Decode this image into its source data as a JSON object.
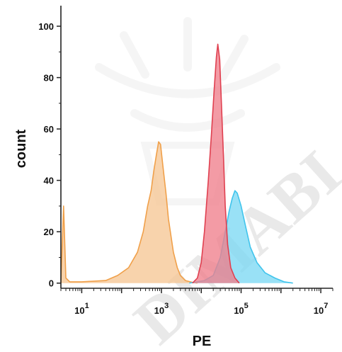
{
  "watermark": {
    "text": "DIMABI"
  },
  "chart_data": {
    "type": "area",
    "title": "",
    "xlabel": "PE",
    "ylabel": "count",
    "xscale": "log",
    "xlim": [
      3,
      20000000
    ],
    "ylim": [
      -2,
      108
    ],
    "x_ticks": [
      {
        "value": 10,
        "base": "10",
        "exp": "1"
      },
      {
        "value": 1000,
        "base": "10",
        "exp": "3"
      },
      {
        "value": 100000,
        "base": "10",
        "exp": "5"
      },
      {
        "value": 10000000,
        "base": "10",
        "exp": "7"
      }
    ],
    "y_ticks": [
      {
        "value": 0,
        "label": "0"
      },
      {
        "value": 20,
        "label": "20"
      },
      {
        "value": 40,
        "label": "40"
      },
      {
        "value": 60,
        "label": "60"
      },
      {
        "value": 80,
        "label": "80"
      },
      {
        "value": 100,
        "label": "100"
      }
    ],
    "grid": false,
    "legend": "none",
    "series": [
      {
        "color": "#f0a04a",
        "fill": "#f6c795",
        "points": [
          [
            3,
            0
          ],
          [
            3.5,
            30
          ],
          [
            4,
            2
          ],
          [
            5,
            0.5
          ],
          [
            10,
            0.5
          ],
          [
            40,
            1
          ],
          [
            80,
            3
          ],
          [
            150,
            6
          ],
          [
            250,
            12
          ],
          [
            350,
            20
          ],
          [
            450,
            30
          ],
          [
            550,
            36
          ],
          [
            650,
            44
          ],
          [
            750,
            50
          ],
          [
            850,
            55
          ],
          [
            950,
            54
          ],
          [
            1100,
            45
          ],
          [
            1300,
            35
          ],
          [
            1500,
            25
          ],
          [
            2000,
            12
          ],
          [
            2500,
            6
          ],
          [
            3000,
            3
          ],
          [
            4000,
            1
          ],
          [
            6000,
            0.3
          ],
          [
            8000,
            0
          ]
        ]
      },
      {
        "color": "#40c4ec",
        "fill": "#7cd8f4",
        "points": [
          [
            5000,
            0
          ],
          [
            8000,
            0.5
          ],
          [
            12000,
            1
          ],
          [
            20000,
            3
          ],
          [
            30000,
            10
          ],
          [
            40000,
            20
          ],
          [
            50000,
            28
          ],
          [
            60000,
            33
          ],
          [
            70000,
            36
          ],
          [
            80000,
            35
          ],
          [
            100000,
            30
          ],
          [
            130000,
            22
          ],
          [
            170000,
            14
          ],
          [
            250000,
            8
          ],
          [
            400000,
            4
          ],
          [
            700000,
            2
          ],
          [
            1200000,
            0.5
          ],
          [
            2000000,
            0
          ]
        ]
      },
      {
        "color": "#e04050",
        "fill": "#ef7f8c",
        "points": [
          [
            6000,
            0
          ],
          [
            8000,
            2
          ],
          [
            10000,
            8
          ],
          [
            12000,
            20
          ],
          [
            15000,
            40
          ],
          [
            18000,
            58
          ],
          [
            21000,
            75
          ],
          [
            24000,
            88
          ],
          [
            26000,
            93
          ],
          [
            29000,
            87
          ],
          [
            32000,
            70
          ],
          [
            36000,
            50
          ],
          [
            40000,
            30
          ],
          [
            46000,
            15
          ],
          [
            55000,
            6
          ],
          [
            70000,
            2
          ],
          [
            90000,
            0
          ]
        ]
      }
    ]
  }
}
